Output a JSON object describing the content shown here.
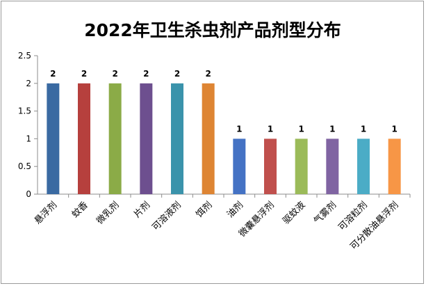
{
  "chart_data": {
    "type": "bar",
    "title": "2022年卫生杀虫剂产品剂型分布",
    "categories": [
      "悬浮剂",
      "蚊香",
      "微乳剂",
      "片剂",
      "可溶液剂",
      "饵剂",
      "油剂",
      "微囊悬浮剂",
      "驱蚊液",
      "气雾剂",
      "可溶粒剂",
      "可分散油悬浮剂"
    ],
    "values": [
      2,
      2,
      2,
      2,
      2,
      2,
      1,
      1,
      1,
      1,
      1,
      1
    ],
    "colors": [
      "#3a6aa2",
      "#b6403d",
      "#8bab47",
      "#6d4f8f",
      "#3a93ab",
      "#de8533",
      "#4472c4",
      "#c0504d",
      "#9bbb59",
      "#8064a2",
      "#4bacc6",
      "#f79646"
    ],
    "ylim": [
      0,
      2.5
    ],
    "yticks": [
      0,
      0.5,
      1,
      1.5,
      2,
      2.5
    ],
    "ytick_labels": [
      "0",
      "0.5",
      "1",
      "1.5",
      "2",
      "2.5"
    ],
    "grid": false,
    "legend": "none",
    "data_labels": true
  }
}
